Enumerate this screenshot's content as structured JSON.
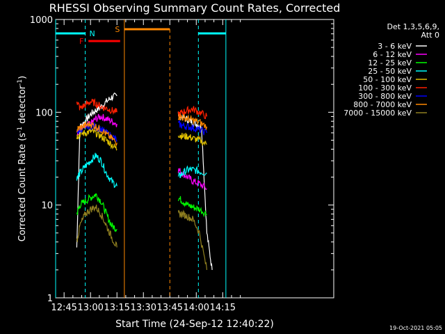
{
  "chart_data": {
    "type": "line",
    "title": "RHESSI Observing Summary Count Rates, Corrected",
    "xlabel": "Start Time (24-Sep-12 12:40:22)",
    "ylabel_main": "Corrected Count Rate (s",
    "ylabel_sup1": "-1",
    "ylabel_mid": " detector",
    "ylabel_sup2": "-1",
    "ylabel_end": ")",
    "yscale": "log",
    "ylim": [
      1,
      1000
    ],
    "xlim_minutes": [
      12.67,
      15.3
    ],
    "x_ticks": [
      "12:45",
      "13:00",
      "13:15",
      "13:30",
      "13:45",
      "14:00",
      "14:15"
    ],
    "y_ticks": [
      "1",
      "10",
      "100",
      "1000"
    ],
    "legend": {
      "header1": "Det 1,3,5,6,9,",
      "header2": "Att 0",
      "placement": "top-right"
    },
    "footer_date": "19-Oct-2021 05:05",
    "series": [
      {
        "name": "3 - 6 keV",
        "color": "#ffffff",
        "seg1": [
          [
            12.87,
            3.5
          ],
          [
            12.9,
            70
          ],
          [
            12.95,
            80
          ],
          [
            13.0,
            95
          ],
          [
            13.05,
            105
          ],
          [
            13.1,
            115
          ],
          [
            13.15,
            130
          ],
          [
            13.2,
            145
          ],
          [
            13.25,
            150
          ]
        ],
        "seg2": [
          [
            13.83,
            100
          ],
          [
            13.85,
            90
          ],
          [
            13.9,
            85
          ],
          [
            13.95,
            80
          ],
          [
            14.0,
            75
          ],
          [
            14.05,
            70
          ],
          [
            14.1,
            5
          ],
          [
            14.15,
            2
          ]
        ]
      },
      {
        "name": "6 - 12 keV",
        "color": "#ff00ff",
        "seg1": [
          [
            12.87,
            60
          ],
          [
            12.9,
            65
          ],
          [
            12.95,
            70
          ],
          [
            13.0,
            75
          ],
          [
            13.05,
            85
          ],
          [
            13.1,
            90
          ],
          [
            13.15,
            85
          ],
          [
            13.2,
            80
          ],
          [
            13.25,
            75
          ]
        ],
        "seg2": [
          [
            13.83,
            24
          ],
          [
            13.87,
            22
          ],
          [
            13.92,
            20
          ],
          [
            13.97,
            18
          ],
          [
            14.03,
            17
          ],
          [
            14.1,
            15
          ]
        ]
      },
      {
        "name": "12 - 25 keV",
        "color": "#00ff00",
        "seg1": [
          [
            12.87,
            8
          ],
          [
            12.9,
            10
          ],
          [
            12.95,
            11
          ],
          [
            13.0,
            12
          ],
          [
            13.05,
            13
          ],
          [
            13.1,
            11
          ],
          [
            13.15,
            8
          ],
          [
            13.2,
            6
          ],
          [
            13.25,
            5.5
          ]
        ],
        "seg2": [
          [
            13.83,
            12
          ],
          [
            13.87,
            11
          ],
          [
            13.92,
            10
          ],
          [
            13.97,
            9.5
          ],
          [
            14.03,
            9
          ],
          [
            14.1,
            8
          ]
        ]
      },
      {
        "name": "25 - 50 keV",
        "color": "#00ffff",
        "seg1": [
          [
            12.87,
            20
          ],
          [
            12.9,
            22
          ],
          [
            12.95,
            26
          ],
          [
            13.0,
            30
          ],
          [
            13.05,
            34
          ],
          [
            13.1,
            30
          ],
          [
            13.15,
            22
          ],
          [
            13.2,
            18
          ],
          [
            13.25,
            16
          ]
        ],
        "seg2": [
          [
            13.83,
            20
          ],
          [
            13.87,
            22
          ],
          [
            13.92,
            24
          ],
          [
            13.97,
            24
          ],
          [
            14.03,
            23
          ],
          [
            14.1,
            22
          ]
        ]
      },
      {
        "name": "50 - 100 keV",
        "color": "#e0c000",
        "seg1": [
          [
            12.87,
            55
          ],
          [
            12.9,
            58
          ],
          [
            12.95,
            60
          ],
          [
            13.0,
            62
          ],
          [
            13.05,
            60
          ],
          [
            13.1,
            55
          ],
          [
            13.15,
            50
          ],
          [
            13.2,
            45
          ],
          [
            13.25,
            40
          ]
        ],
        "seg2": [
          [
            13.83,
            58
          ],
          [
            13.87,
            55
          ],
          [
            13.92,
            55
          ],
          [
            13.97,
            52
          ],
          [
            14.03,
            50
          ],
          [
            14.1,
            45
          ]
        ]
      },
      {
        "name": "100 - 300 keV",
        "color": "#ff2000",
        "seg1": [
          [
            12.87,
            135
          ],
          [
            12.9,
            110
          ],
          [
            12.95,
            120
          ],
          [
            13.0,
            130
          ],
          [
            13.05,
            125
          ],
          [
            13.1,
            115
          ],
          [
            13.15,
            110
          ],
          [
            13.2,
            105
          ],
          [
            13.25,
            100
          ]
        ],
        "seg2": [
          [
            13.83,
            95
          ],
          [
            13.87,
            100
          ],
          [
            13.92,
            105
          ],
          [
            13.97,
            108
          ],
          [
            14.03,
            100
          ],
          [
            14.1,
            90
          ]
        ]
      },
      {
        "name": "300 - 800 keV",
        "color": "#0000ff",
        "seg1": [
          [
            12.87,
            60
          ],
          [
            12.9,
            65
          ],
          [
            12.95,
            68
          ],
          [
            13.0,
            72
          ],
          [
            13.05,
            70
          ],
          [
            13.1,
            65
          ],
          [
            13.15,
            60
          ],
          [
            13.2,
            55
          ],
          [
            13.25,
            50
          ]
        ],
        "seg2": [
          [
            13.83,
            75
          ],
          [
            13.87,
            72
          ],
          [
            13.92,
            70
          ],
          [
            13.97,
            68
          ],
          [
            14.03,
            65
          ],
          [
            14.1,
            60
          ]
        ]
      },
      {
        "name": "800 - 7000 keV",
        "color": "#ff8800",
        "seg1": [
          [
            12.87,
            65
          ],
          [
            12.9,
            68
          ],
          [
            12.95,
            72
          ],
          [
            13.0,
            75
          ],
          [
            13.05,
            70
          ],
          [
            13.1,
            65
          ],
          [
            13.15,
            58
          ],
          [
            13.2,
            52
          ],
          [
            13.25,
            47
          ]
        ],
        "seg2": [
          [
            13.83,
            90
          ],
          [
            13.87,
            88
          ],
          [
            13.92,
            85
          ],
          [
            13.97,
            82
          ],
          [
            14.03,
            78
          ],
          [
            14.1,
            70
          ]
        ]
      },
      {
        "name": "7000 - 15000 keV",
        "color": "#908020",
        "seg1": [
          [
            12.87,
            4
          ],
          [
            12.9,
            6
          ],
          [
            12.95,
            8
          ],
          [
            13.0,
            9
          ],
          [
            13.05,
            9.5
          ],
          [
            13.1,
            8
          ],
          [
            13.15,
            6
          ],
          [
            13.2,
            4.5
          ],
          [
            13.25,
            3.5
          ]
        ],
        "seg2": [
          [
            13.83,
            8
          ],
          [
            13.87,
            8
          ],
          [
            13.92,
            7.5
          ],
          [
            13.97,
            7
          ],
          [
            14.03,
            5
          ],
          [
            14.1,
            2
          ]
        ]
      }
    ],
    "flags": [
      {
        "label": "F",
        "color": "#ff0000",
        "x0": 12.98,
        "x1": 13.28
      },
      {
        "label": "S",
        "color": "#ff8800",
        "x0": 13.32,
        "x1": 13.75
      },
      {
        "label": "N",
        "color": "#00ffff",
        "x0": 12.67,
        "x1": 12.95
      },
      {
        "label": "",
        "color": "#00ffff",
        "x0": 14.02,
        "x1": 14.28
      }
    ]
  }
}
